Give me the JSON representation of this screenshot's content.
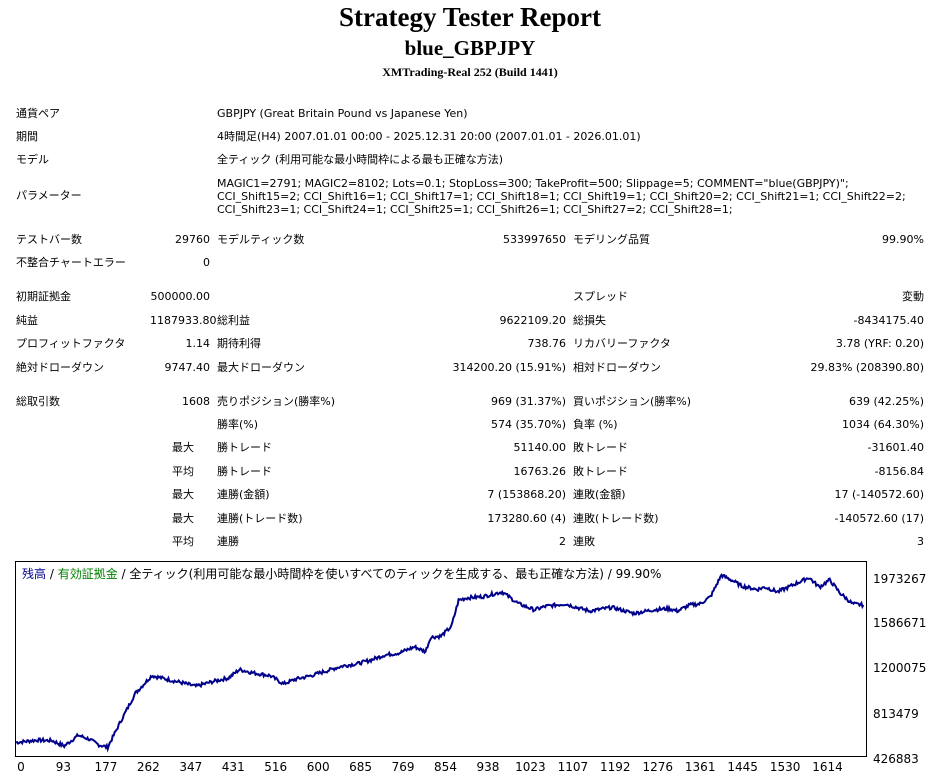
{
  "header": {
    "title": "Strategy Tester Report",
    "subtitle": "blue_GBPJPY",
    "server": "XMTrading-Real 252 (Build 1441)"
  },
  "info": {
    "pair_label": "通貨ペア",
    "pair_value": "GBPJPY (Great Britain Pound vs Japanese Yen)",
    "period_label": "期間",
    "period_value": "4時間足(H4) 2007.01.01 00:00 - 2025.12.31 20:00 (2007.01.01 - 2026.01.01)",
    "model_label": "モデル",
    "model_value": "全ティック (利用可能な最小時間枠による最も正確な方法)",
    "param_label": "パラメーター",
    "param_value": "MAGIC1=2791; MAGIC2=8102; Lots=0.1; StopLoss=300; TakeProfit=500; Slippage=5; COMMENT=\"blue(GBPJPY)\"; CCI_Shift15=2; CCI_Shift16=1; CCI_Shift17=1; CCI_Shift18=1; CCI_Shift19=1; CCI_Shift20=2; CCI_Shift21=1; CCI_Shift22=2; CCI_Shift23=1; CCI_Shift24=1; CCI_Shift25=1; CCI_Shift26=1; CCI_Shift27=2; CCI_Shift28=1;"
  },
  "stats": {
    "bars_label": "テストバー数",
    "bars_value": "29760",
    "ticks_label": "モデルティック数",
    "ticks_value": "533997650",
    "quality_label": "モデリング品質",
    "quality_value": "99.90%",
    "mismatch_label": "不整合チャートエラー",
    "mismatch_value": "0",
    "deposit_label": "初期証拠金",
    "deposit_value": "500000.00",
    "spread_label": "スプレッド",
    "spread_value": "変動",
    "net_label": "純益",
    "net_value": "1187933.80",
    "gross_profit_label": "総利益",
    "gross_profit_value": "9622109.20",
    "gross_loss_label": "総損失",
    "gross_loss_value": "-8434175.40",
    "pf_label": "プロフィットファクタ",
    "pf_value": "1.14",
    "expected_label": "期待利得",
    "expected_value": "738.76",
    "recovery_label": "リカバリーファクタ",
    "recovery_value": "3.78 (YRF: 0.20)",
    "abs_dd_label": "絶対ドローダウン",
    "abs_dd_value": "9747.40",
    "max_dd_label": "最大ドローダウン",
    "max_dd_value": "314200.20 (15.91%)",
    "rel_dd_label": "相対ドローダウン",
    "rel_dd_value": "29.83% (208390.80)",
    "total_label": "総取引数",
    "total_value": "1608",
    "short_label": "売りポジション(勝率%)",
    "short_value": "969 (31.37%)",
    "long_label": "買いポジション(勝率%)",
    "long_value": "639 (42.25%)",
    "winrate_label": "勝率(%)",
    "winrate_value": "574 (35.70%)",
    "lossrate_label": "負率 (%)",
    "lossrate_value": "1034 (64.30%)",
    "max_prefix": "最大",
    "avg_prefix": "平均",
    "max_win_label": "勝トレード",
    "max_win_value": "51140.00",
    "max_loss_label": "敗トレード",
    "max_loss_value": "-31601.40",
    "avg_win_label": "勝トレード",
    "avg_win_value": "16763.26",
    "avg_loss_label": "敗トレード",
    "avg_loss_value": "-8156.84",
    "cons_wins_amt_label": "連勝(金額)",
    "cons_wins_amt_value": "7 (153868.20)",
    "cons_loss_amt_label": "連敗(金額)",
    "cons_loss_amt_value": "17 (-140572.60)",
    "cons_wins_cnt_label": "連勝(トレード数)",
    "cons_wins_cnt_value": "173280.60 (4)",
    "cons_loss_cnt_label": "連敗(トレード数)",
    "cons_loss_cnt_value": "-140572.60 (17)",
    "avg_cons_win_label": "連勝",
    "avg_cons_win_value": "2",
    "avg_cons_loss_label": "連敗",
    "avg_cons_loss_value": "3"
  },
  "chart_data": {
    "type": "line",
    "legend_balance": "残高",
    "legend_sep1": " / ",
    "legend_equity": "有効証拠金",
    "legend_rest": " / 全ティック(利用可能な最小時間枠を使いすべてのティックを生成する、最も正確な方法) / 99.90%",
    "colors": {
      "line": "#00008b",
      "equity": "#008000"
    },
    "x_ticks": [
      "0",
      "93",
      "177",
      "262",
      "347",
      "431",
      "516",
      "600",
      "685",
      "769",
      "854",
      "938",
      "1023",
      "1107",
      "1192",
      "1276",
      "1361",
      "1445",
      "1530",
      "1614"
    ],
    "y_ticks": [
      "1973267",
      "1586671",
      "1200075",
      "813479",
      "426883"
    ],
    "xlim": [
      0,
      1640
    ],
    "ylim": [
      426883,
      2050000
    ],
    "series": [
      {
        "x": [
          0,
          40,
          70,
          93,
          120,
          140,
          160,
          177,
          200,
          230,
          262,
          290,
          320,
          347,
          380,
          410,
          431,
          460,
          490,
          516,
          540,
          570,
          600,
          630,
          660,
          685,
          710,
          740,
          769,
          790,
          800,
          820,
          840,
          854,
          870,
          900,
          938,
          970,
          1000,
          1023,
          1060,
          1090,
          1107,
          1150,
          1192,
          1230,
          1260,
          1276,
          1300,
          1320,
          1340,
          1361,
          1380,
          1400,
          1430,
          1445,
          1470,
          1500,
          1530,
          1550,
          1570,
          1590,
          1614,
          1635
        ],
        "y": [
          540000,
          560000,
          555000,
          510000,
          600000,
          570000,
          520000,
          500000,
          700000,
          950000,
          1100000,
          1070000,
          1040000,
          1010000,
          1050000,
          1080000,
          1150000,
          1120000,
          1100000,
          1030000,
          1070000,
          1100000,
          1140000,
          1180000,
          1200000,
          1230000,
          1270000,
          1290000,
          1340000,
          1300000,
          1420000,
          1430000,
          1510000,
          1730000,
          1750000,
          1760000,
          1800000,
          1700000,
          1650000,
          1680000,
          1700000,
          1660000,
          1640000,
          1670000,
          1620000,
          1650000,
          1660000,
          1640000,
          1690000,
          1700000,
          1760000,
          1940000,
          1900000,
          1850000,
          1820000,
          1840000,
          1800000,
          1860000,
          1920000,
          1840000,
          1900000,
          1790000,
          1700000,
          1690000
        ]
      }
    ]
  }
}
